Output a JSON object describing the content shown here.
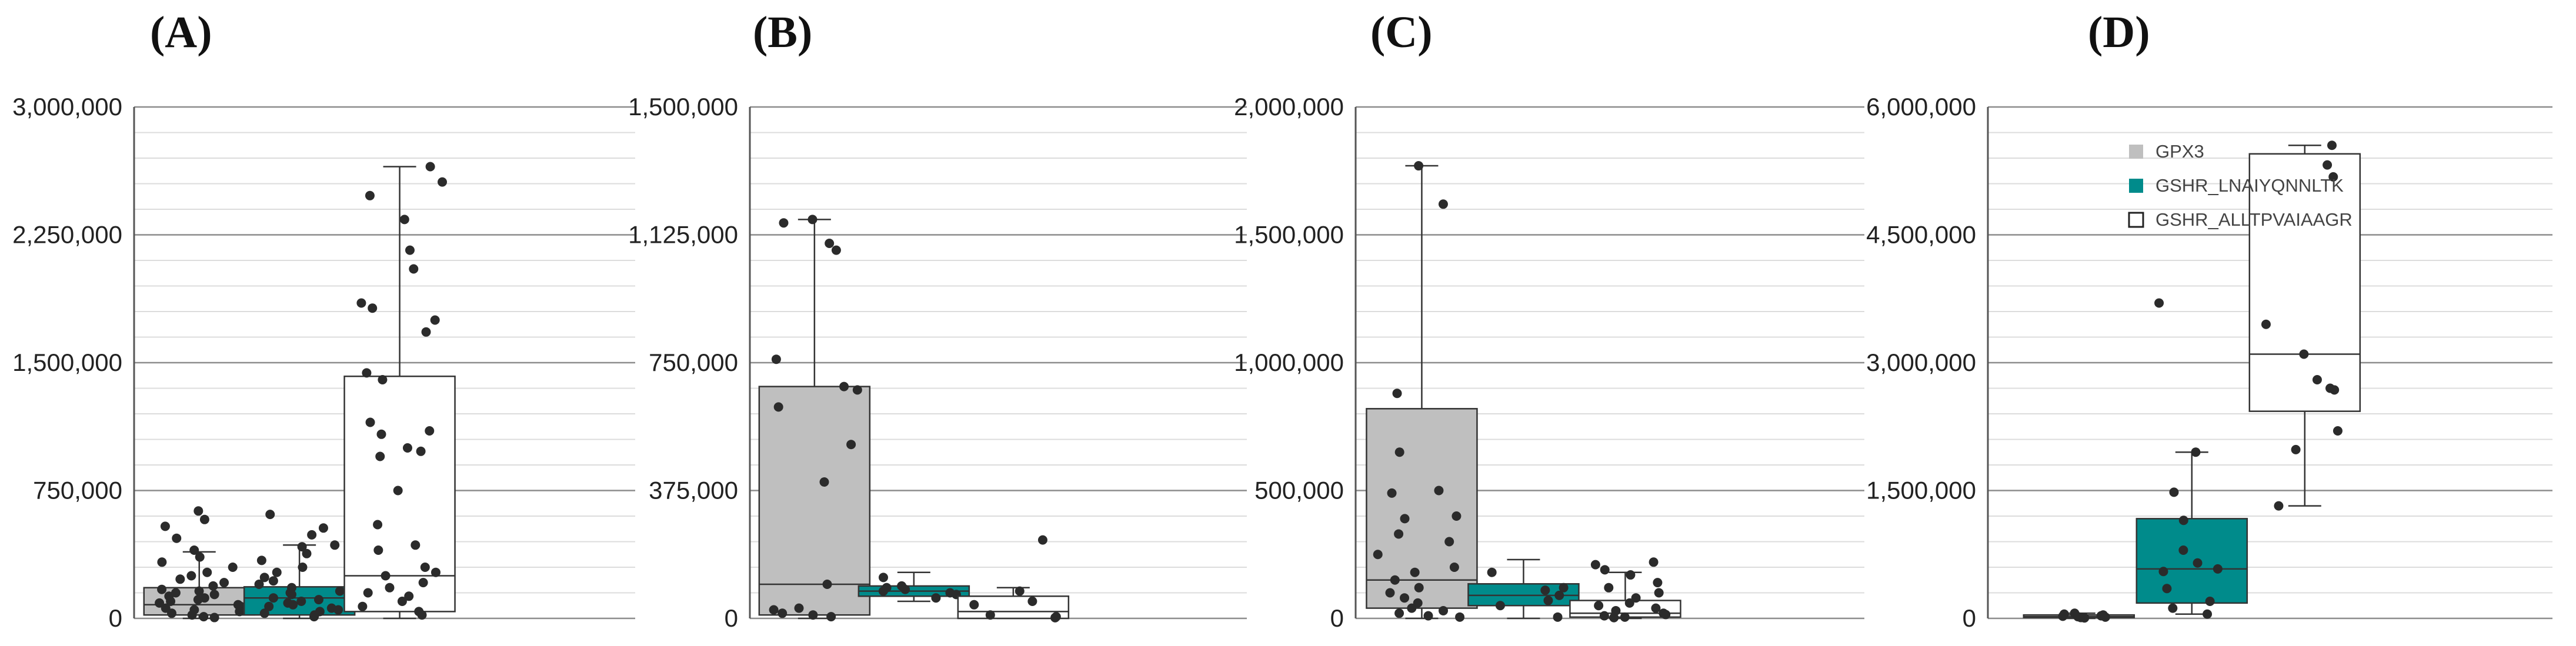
{
  "legend": {
    "placement": "top-left of panel D",
    "entries": [
      {
        "label": "GPX3",
        "color": "#bfbfbf"
      },
      {
        "label": "GSHR_LNAIYQNNLTK",
        "color": "#008b8b"
      },
      {
        "label": "GSHR_ALLTPVAIAAGR",
        "color": "#ffffff"
      }
    ]
  },
  "chart_data": [
    {
      "type": "box",
      "panel": "(A)",
      "ylim": [
        0,
        3000000
      ],
      "y_ticks": [
        0,
        750000,
        1500000,
        2250000,
        3000000
      ],
      "y_tick_labels": [
        "0",
        "750,000",
        "1,500,000",
        "2,250,000",
        "3,000,000"
      ],
      "grid": true,
      "series": [
        {
          "name": "GPX3",
          "color": "#bfbfbf",
          "box": {
            "min": 0,
            "q1": 20000,
            "median": 80000,
            "q3": 180000,
            "max": 390000
          },
          "points": [
            630000,
            580000,
            540000,
            470000,
            400000,
            360000,
            330000,
            300000,
            270000,
            250000,
            230000,
            210000,
            190000,
            170000,
            160000,
            150000,
            140000,
            130000,
            120000,
            110000,
            100000,
            90000,
            80000,
            70000,
            60000,
            50000,
            40000,
            30000,
            20000,
            10000,
            5000
          ]
        },
        {
          "name": "GSHR_LNAIYQNNLTK",
          "color": "#008b8b",
          "box": {
            "min": 0,
            "q1": 20000,
            "median": 120000,
            "q3": 185000,
            "max": 430000
          },
          "points": [
            610000,
            530000,
            490000,
            430000,
            420000,
            380000,
            340000,
            300000,
            270000,
            240000,
            220000,
            200000,
            180000,
            160000,
            150000,
            140000,
            120000,
            110000,
            100000,
            90000,
            80000,
            70000,
            60000,
            50000,
            40000,
            30000,
            20000,
            10000
          ]
        },
        {
          "name": "GSHR_ALLTPVAIAAGR",
          "color": "#ffffff",
          "box": {
            "min": 0,
            "q1": 40000,
            "median": 250000,
            "q3": 1420000,
            "max": 2650000
          },
          "points": [
            2650000,
            2560000,
            2480000,
            2340000,
            2160000,
            2050000,
            1850000,
            1820000,
            1750000,
            1680000,
            1440000,
            1400000,
            1150000,
            1100000,
            1080000,
            1000000,
            980000,
            950000,
            750000,
            550000,
            430000,
            400000,
            300000,
            270000,
            250000,
            210000,
            180000,
            150000,
            130000,
            100000,
            70000,
            40000,
            20000
          ]
        }
      ]
    },
    {
      "type": "box",
      "panel": "(B)",
      "ylim": [
        0,
        1500000
      ],
      "y_ticks": [
        0,
        375000,
        750000,
        1125000,
        1500000
      ],
      "y_tick_labels": [
        "0",
        "375,000",
        "750,000",
        "1,125,000",
        "1,500,000"
      ],
      "grid": true,
      "series": [
        {
          "name": "GPX3",
          "color": "#bfbfbf",
          "box": {
            "min": 0,
            "q1": 10000,
            "median": 100000,
            "q3": 680000,
            "max": 1170000
          },
          "points": [
            1170000,
            1160000,
            1100000,
            1080000,
            760000,
            680000,
            670000,
            620000,
            510000,
            400000,
            100000,
            30000,
            25000,
            15000,
            10000,
            5000
          ]
        },
        {
          "name": "GSHR_LNAIYQNNLTK",
          "color": "#008b8b",
          "box": {
            "min": 50000,
            "q1": 65000,
            "median": 80000,
            "q3": 95000,
            "max": 135000
          },
          "points": [
            120000,
            95000,
            90000,
            85000,
            80000,
            75000,
            70000,
            60000
          ]
        },
        {
          "name": "GSHR_ALLTPVAIAAGR",
          "color": "#ffffff",
          "box": {
            "min": 0,
            "q1": 0,
            "median": 20000,
            "q3": 65000,
            "max": 90000
          },
          "points": [
            230000,
            80000,
            50000,
            40000,
            10000,
            5000,
            2000
          ]
        }
      ]
    },
    {
      "type": "box",
      "panel": "(C)",
      "ylim": [
        0,
        2000000
      ],
      "y_ticks": [
        0,
        500000,
        1000000,
        1500000,
        2000000
      ],
      "y_tick_labels": [
        "0",
        "500,000",
        "1,000,000",
        "1,500,000",
        "2,000,000"
      ],
      "grid": true,
      "series": [
        {
          "name": "GPX3",
          "color": "#bfbfbf",
          "box": {
            "min": 0,
            "q1": 40000,
            "median": 150000,
            "q3": 820000,
            "max": 1770000
          },
          "points": [
            1770000,
            1620000,
            880000,
            650000,
            500000,
            490000,
            400000,
            390000,
            330000,
            300000,
            250000,
            200000,
            180000,
            150000,
            120000,
            100000,
            80000,
            60000,
            40000,
            30000,
            20000,
            10000,
            5000
          ]
        },
        {
          "name": "GSHR_LNAIYQNNLTK",
          "color": "#008b8b",
          "box": {
            "min": 0,
            "q1": 50000,
            "median": 90000,
            "q3": 135000,
            "max": 230000
          },
          "points": [
            180000,
            120000,
            110000,
            90000,
            70000,
            50000,
            5000
          ]
        },
        {
          "name": "GSHR_ALLTPVAIAAGR",
          "color": "#ffffff",
          "box": {
            "min": 0,
            "q1": 5000,
            "median": 20000,
            "q3": 70000,
            "max": 180000
          },
          "points": [
            220000,
            210000,
            190000,
            170000,
            140000,
            120000,
            100000,
            80000,
            60000,
            50000,
            40000,
            30000,
            20000,
            15000,
            10000,
            5000,
            3000
          ]
        }
      ]
    },
    {
      "type": "box",
      "panel": "(D)",
      "ylim": [
        0,
        6000000
      ],
      "y_ticks": [
        0,
        1500000,
        3000000,
        4500000,
        6000000
      ],
      "y_tick_labels": [
        "0",
        "1,500,000",
        "3,000,000",
        "4,500,000",
        "6,000,000"
      ],
      "grid": true,
      "series": [
        {
          "name": "GPX3",
          "color": "#bfbfbf",
          "box": {
            "min": 0,
            "q1": 10000,
            "median": 20000,
            "q3": 40000,
            "max": 60000
          },
          "points": [
            60000,
            50000,
            40000,
            30000,
            25000,
            20000,
            15000,
            10000,
            5000
          ]
        },
        {
          "name": "GSHR_LNAIYQNNLTK",
          "color": "#008b8b",
          "box": {
            "min": 50000,
            "q1": 180000,
            "median": 580000,
            "q3": 1170000,
            "max": 1950000
          },
          "points": [
            3700000,
            1950000,
            1480000,
            1150000,
            800000,
            650000,
            580000,
            550000,
            350000,
            200000,
            120000,
            50000
          ]
        },
        {
          "name": "GSHR_ALLTPVAIAAGR",
          "color": "#ffffff",
          "box": {
            "min": 1320000,
            "q1": 2430000,
            "median": 3100000,
            "q3": 5450000,
            "max": 5550000
          },
          "points": [
            5550000,
            5320000,
            5180000,
            3450000,
            3100000,
            2800000,
            2700000,
            2680000,
            2200000,
            1980000,
            1320000
          ]
        }
      ]
    }
  ]
}
